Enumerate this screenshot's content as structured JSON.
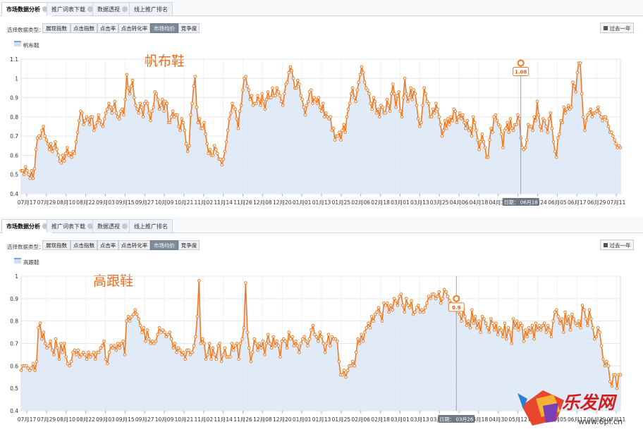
{
  "tabs": [
    {
      "label": "市场数据分析",
      "active": true
    },
    {
      "label": "推广词表下载",
      "active": false
    },
    {
      "label": "数据透视",
      "active": false
    },
    {
      "label": "线上推广排名",
      "active": false
    }
  ],
  "toolbar": {
    "type_label": "选择数据类型：",
    "types": [
      "展现指数",
      "点击指数",
      "点击率",
      "点击转化率",
      "市场均价",
      "竞争度"
    ],
    "active_type": "市场均价",
    "range_label": "过去一年"
  },
  "colors": {
    "line": "#f07a22",
    "area": "#dce8f6",
    "marker_fill": "#ffffff",
    "grid": "#e3e6ea",
    "tip_bg": "#6e7884"
  },
  "watermark": {
    "text": "乐发网",
    "url": "www.6pf.cn"
  },
  "chart_data": [
    {
      "type": "area",
      "handwritten_title": "帆布鞋",
      "legend": "帆布鞋",
      "ylim": [
        0.4,
        1.1
      ],
      "yticks": [
        "0.4",
        "0.5",
        "0.6",
        "0.7",
        "0.8",
        "0.9",
        "1",
        "1.1"
      ],
      "xticks": [
        "07月17",
        "07月29",
        "08月10",
        "08月22",
        "09月03",
        "09月15",
        "09月27",
        "10月09",
        "10月21",
        "11月02",
        "11月14",
        "11月26",
        "12月08",
        "12月20",
        "01月01",
        "01月13",
        "01月25",
        "02月06",
        "02月18",
        "03月01",
        "03月13",
        "03月25",
        "04月06",
        "04月18",
        "04月30",
        "05月12",
        "05月24",
        "06月05",
        "06月17",
        "06月29",
        "07月11"
      ],
      "tooltip": {
        "date_label": "日期：",
        "date": "06月18",
        "value": "1.08",
        "index": 336
      },
      "values": [
        0.52,
        0.52,
        0.5,
        0.54,
        0.52,
        0.5,
        0.48,
        0.52,
        0.48,
        0.53,
        0.63,
        0.69,
        0.7,
        0.69,
        0.73,
        0.75,
        0.7,
        0.68,
        0.66,
        0.63,
        0.66,
        0.62,
        0.64,
        0.67,
        0.63,
        0.6,
        0.57,
        0.56,
        0.6,
        0.57,
        0.61,
        0.64,
        0.6,
        0.61,
        0.59,
        0.62,
        0.61,
        0.67,
        0.72,
        0.78,
        0.83,
        0.82,
        0.76,
        0.78,
        0.8,
        0.79,
        0.76,
        0.8,
        0.8,
        0.73,
        0.75,
        0.77,
        0.81,
        0.78,
        0.76,
        0.75,
        0.79,
        0.82,
        0.84,
        0.87,
        0.85,
        0.82,
        0.85,
        0.88,
        0.82,
        0.8,
        0.79,
        0.83,
        0.84,
        0.81,
        0.89,
        1.02,
        0.95,
        0.92,
        0.96,
        0.99,
        0.9,
        0.86,
        0.84,
        0.82,
        0.87,
        0.85,
        0.8,
        0.87,
        0.88,
        0.87,
        0.82,
        0.78,
        0.83,
        0.85,
        0.93,
        0.92,
        0.89,
        0.84,
        0.86,
        0.89,
        0.83,
        0.88,
        0.87,
        0.77,
        0.77,
        0.8,
        0.83,
        0.8,
        0.81,
        0.81,
        0.75,
        0.73,
        0.79,
        0.77,
        0.73,
        0.66,
        0.62,
        0.65,
        0.81,
        0.87,
        0.96,
        1.01,
        0.85,
        0.77,
        0.79,
        0.74,
        0.74,
        0.77,
        0.71,
        0.66,
        0.61,
        0.63,
        0.6,
        0.6,
        0.65,
        0.63,
        0.61,
        0.58,
        0.58,
        0.55,
        0.58,
        0.62,
        0.67,
        0.73,
        0.79,
        0.82,
        0.87,
        0.85,
        0.84,
        0.79,
        0.74,
        0.83,
        0.86,
        0.94,
        1.0,
        1.01,
        0.96,
        0.94,
        0.89,
        0.91,
        0.86,
        0.87,
        0.87,
        0.91,
        0.89,
        0.86,
        0.92,
        0.88,
        0.84,
        0.89,
        0.93,
        0.9,
        0.9,
        0.95,
        0.91,
        0.91,
        0.95,
        0.93,
        0.91,
        0.88,
        0.86,
        0.92,
        0.97,
        0.98,
        1.03,
        1.06,
        1.04,
        1.0,
        0.95,
        0.95,
        0.99,
        0.97,
        0.91,
        0.89,
        0.85,
        0.81,
        0.86,
        0.88,
        0.93,
        0.94,
        0.87,
        0.9,
        0.89,
        0.87,
        0.9,
        0.85,
        0.83,
        0.87,
        0.8,
        0.82,
        0.8,
        0.79,
        0.8,
        0.73,
        0.74,
        0.68,
        0.7,
        0.7,
        0.72,
        0.68,
        0.73,
        0.76,
        0.72,
        0.8,
        0.84,
        0.87,
        0.92,
        0.95,
        0.9,
        0.88,
        0.94,
        0.98,
        1.02,
        1.06,
        1.03,
        0.98,
        0.95,
        0.94,
        0.92,
        0.87,
        0.84,
        0.9,
        0.88,
        0.82,
        0.84,
        0.8,
        0.86,
        0.85,
        0.82,
        0.82,
        0.89,
        0.86,
        0.83,
        0.92,
        0.97,
        0.92,
        0.85,
        0.91,
        0.93,
        0.83,
        0.8,
        0.9,
        1.0,
        0.92,
        0.88,
        0.9,
        0.95,
        0.89,
        0.94,
        0.92,
        0.86,
        0.79,
        0.75,
        0.77,
        0.86,
        0.95,
        0.92,
        0.88,
        0.87,
        0.8,
        0.8,
        0.84,
        0.82,
        0.87,
        0.84,
        0.8,
        0.76,
        0.7,
        0.73,
        0.78,
        0.74,
        0.79,
        0.76,
        0.8,
        0.78,
        0.84,
        0.83,
        0.77,
        0.8,
        0.82,
        0.79,
        0.81,
        0.77,
        0.74,
        0.78,
        0.73,
        0.74,
        0.7,
        0.8,
        0.77,
        0.73,
        0.68,
        0.63,
        0.67,
        0.71,
        0.67,
        0.64,
        0.59,
        0.59,
        0.68,
        0.74,
        0.72,
        0.8,
        0.81,
        0.78,
        0.76,
        0.75,
        0.71,
        0.64,
        0.73,
        0.74,
        0.77,
        0.72,
        0.79,
        0.74,
        0.73,
        0.76,
        0.76,
        0.81,
        0.79,
        0.69,
        0.64,
        0.63,
        0.64,
        0.68,
        0.76,
        0.75,
        0.75,
        0.73,
        0.8,
        0.78,
        0.88,
        0.81,
        0.75,
        0.73,
        0.79,
        0.78,
        0.75,
        0.72,
        0.79,
        0.82,
        0.74,
        0.67,
        0.62,
        0.59,
        0.69,
        0.71,
        0.78,
        0.77,
        0.85,
        0.82,
        0.84,
        0.86,
        0.84,
        0.85,
        0.98,
        0.96,
        0.93,
        1.03,
        1.08,
        1.08,
        0.92,
        0.8,
        0.73,
        0.78,
        0.81,
        0.82,
        0.84,
        0.8,
        0.82,
        0.82,
        0.83,
        0.85,
        0.82,
        0.8,
        0.78,
        0.8,
        0.8,
        0.78,
        0.75,
        0.72,
        0.72,
        0.7,
        0.68,
        0.66,
        0.64,
        0.65,
        0.64
      ]
    },
    {
      "type": "area",
      "handwritten_title": "高跟鞋",
      "legend": "高跟鞋",
      "ylim": [
        0.4,
        1.0
      ],
      "yticks": [
        "0.4",
        "0.5",
        "0.6",
        "0.7",
        "0.8",
        "0.9",
        "1"
      ],
      "xticks": [
        "07月17",
        "07月29",
        "08月10",
        "08月22",
        "09月03",
        "09月15",
        "09月27",
        "10月09",
        "10月21",
        "11月02",
        "11月14",
        "11月26",
        "12月08",
        "12月20",
        "01月01",
        "01月13",
        "01月25",
        "02月06",
        "02月18",
        "03月01",
        "03月13",
        "03月25",
        "04月06",
        "04月18",
        "04月30",
        "05月12",
        "05月24",
        "06月05",
        "06月17",
        "06月29",
        "07月11"
      ],
      "tooltip": {
        "date_label": "日期：",
        "date": "03月26",
        "value": "0.9",
        "index": 252
      },
      "values": [
        0.58,
        0.6,
        0.6,
        0.6,
        0.59,
        0.58,
        0.59,
        0.61,
        0.58,
        0.62,
        0.77,
        0.79,
        0.72,
        0.75,
        0.7,
        0.68,
        0.69,
        0.71,
        0.67,
        0.65,
        0.72,
        0.68,
        0.63,
        0.7,
        0.66,
        0.7,
        0.64,
        0.61,
        0.6,
        0.62,
        0.66,
        0.67,
        0.65,
        0.67,
        0.64,
        0.65,
        0.66,
        0.65,
        0.63,
        0.66,
        0.64,
        0.65,
        0.66,
        0.63,
        0.66,
        0.66,
        0.68,
        0.69,
        0.71,
        0.63,
        0.61,
        0.66,
        0.69,
        0.68,
        0.69,
        0.67,
        0.7,
        0.68,
        0.7,
        0.71,
        0.65,
        0.8,
        0.82,
        0.8,
        0.82,
        0.83,
        0.85,
        0.83,
        0.81,
        0.78,
        0.75,
        0.77,
        0.71,
        0.76,
        0.72,
        0.7,
        0.71,
        0.7,
        0.71,
        0.74,
        0.77,
        0.75,
        0.76,
        0.75,
        0.73,
        0.74,
        0.75,
        0.72,
        0.68,
        0.7,
        0.66,
        0.68,
        0.67,
        0.65,
        0.66,
        0.63,
        0.67,
        0.67,
        0.65,
        0.66,
        0.69,
        0.73,
        0.82,
        0.98,
        0.7,
        0.72,
        0.7,
        0.63,
        0.65,
        0.7,
        0.63,
        0.68,
        0.65,
        0.63,
        0.69,
        0.7,
        0.62,
        0.65,
        0.68,
        0.64,
        0.64,
        0.64,
        0.7,
        0.67,
        0.69,
        0.7,
        0.63,
        0.7,
        0.72,
        0.77,
        0.97,
        0.75,
        0.68,
        0.62,
        0.66,
        0.72,
        0.7,
        0.67,
        0.7,
        0.68,
        0.71,
        0.65,
        0.7,
        0.74,
        0.7,
        0.68,
        0.73,
        0.69,
        0.71,
        0.69,
        0.64,
        0.71,
        0.72,
        0.71,
        0.68,
        0.75,
        0.72,
        0.73,
        0.69,
        0.71,
        0.69,
        0.66,
        0.7,
        0.72,
        0.73,
        0.71,
        0.69,
        0.72,
        0.76,
        0.78,
        0.74,
        0.73,
        0.71,
        0.75,
        0.73,
        0.7,
        0.66,
        0.7,
        0.74,
        0.69,
        0.73,
        0.72,
        0.72,
        0.71,
        0.62,
        0.56,
        0.56,
        0.58,
        0.55,
        0.58,
        0.6,
        0.6,
        0.62,
        0.6,
        0.66,
        0.72,
        0.7,
        0.74,
        0.71,
        0.75,
        0.77,
        0.79,
        0.77,
        0.82,
        0.8,
        0.83,
        0.84,
        0.86,
        0.83,
        0.8,
        0.88,
        0.87,
        0.88,
        0.84,
        0.87,
        0.85,
        0.9,
        0.89,
        0.87,
        0.91,
        0.92,
        0.87,
        0.84,
        0.9,
        0.87,
        0.86,
        0.89,
        0.83,
        0.84,
        0.86,
        0.87,
        0.84,
        0.85,
        0.84,
        0.86,
        0.88,
        0.91,
        0.9,
        0.92,
        0.92,
        0.9,
        0.91,
        0.93,
        0.88,
        0.9,
        0.94,
        0.93,
        0.91,
        0.89,
        0.88,
        0.86,
        0.87,
        0.86,
        0.84,
        0.83,
        0.8,
        0.85,
        0.82,
        0.78,
        0.8,
        0.77,
        0.85,
        0.79,
        0.82,
        0.77,
        0.8,
        0.75,
        0.82,
        0.81,
        0.79,
        0.77,
        0.75,
        0.81,
        0.79,
        0.76,
        0.79,
        0.74,
        0.77,
        0.76,
        0.73,
        0.79,
        0.72,
        0.77,
        0.75,
        0.7,
        0.81,
        0.77,
        0.8,
        0.76,
        0.79,
        0.78,
        0.71,
        0.76,
        0.73,
        0.77,
        0.75,
        0.78,
        0.72,
        0.79,
        0.76,
        0.78,
        0.76,
        0.78,
        0.79,
        0.75,
        0.78,
        0.76,
        0.73,
        0.8,
        0.84,
        0.85,
        0.82,
        0.79,
        0.81,
        0.75,
        0.84,
        0.79,
        0.82,
        0.76,
        0.83,
        0.81,
        0.79,
        0.78,
        0.8,
        0.77,
        0.87,
        0.85,
        0.81,
        0.78,
        0.85,
        0.81,
        0.77,
        0.72,
        0.73,
        0.77,
        0.75,
        0.69,
        0.63,
        0.6,
        0.62,
        0.6,
        0.53,
        0.51,
        0.56,
        0.56,
        0.5,
        0.56,
        0.56
      ]
    }
  ]
}
